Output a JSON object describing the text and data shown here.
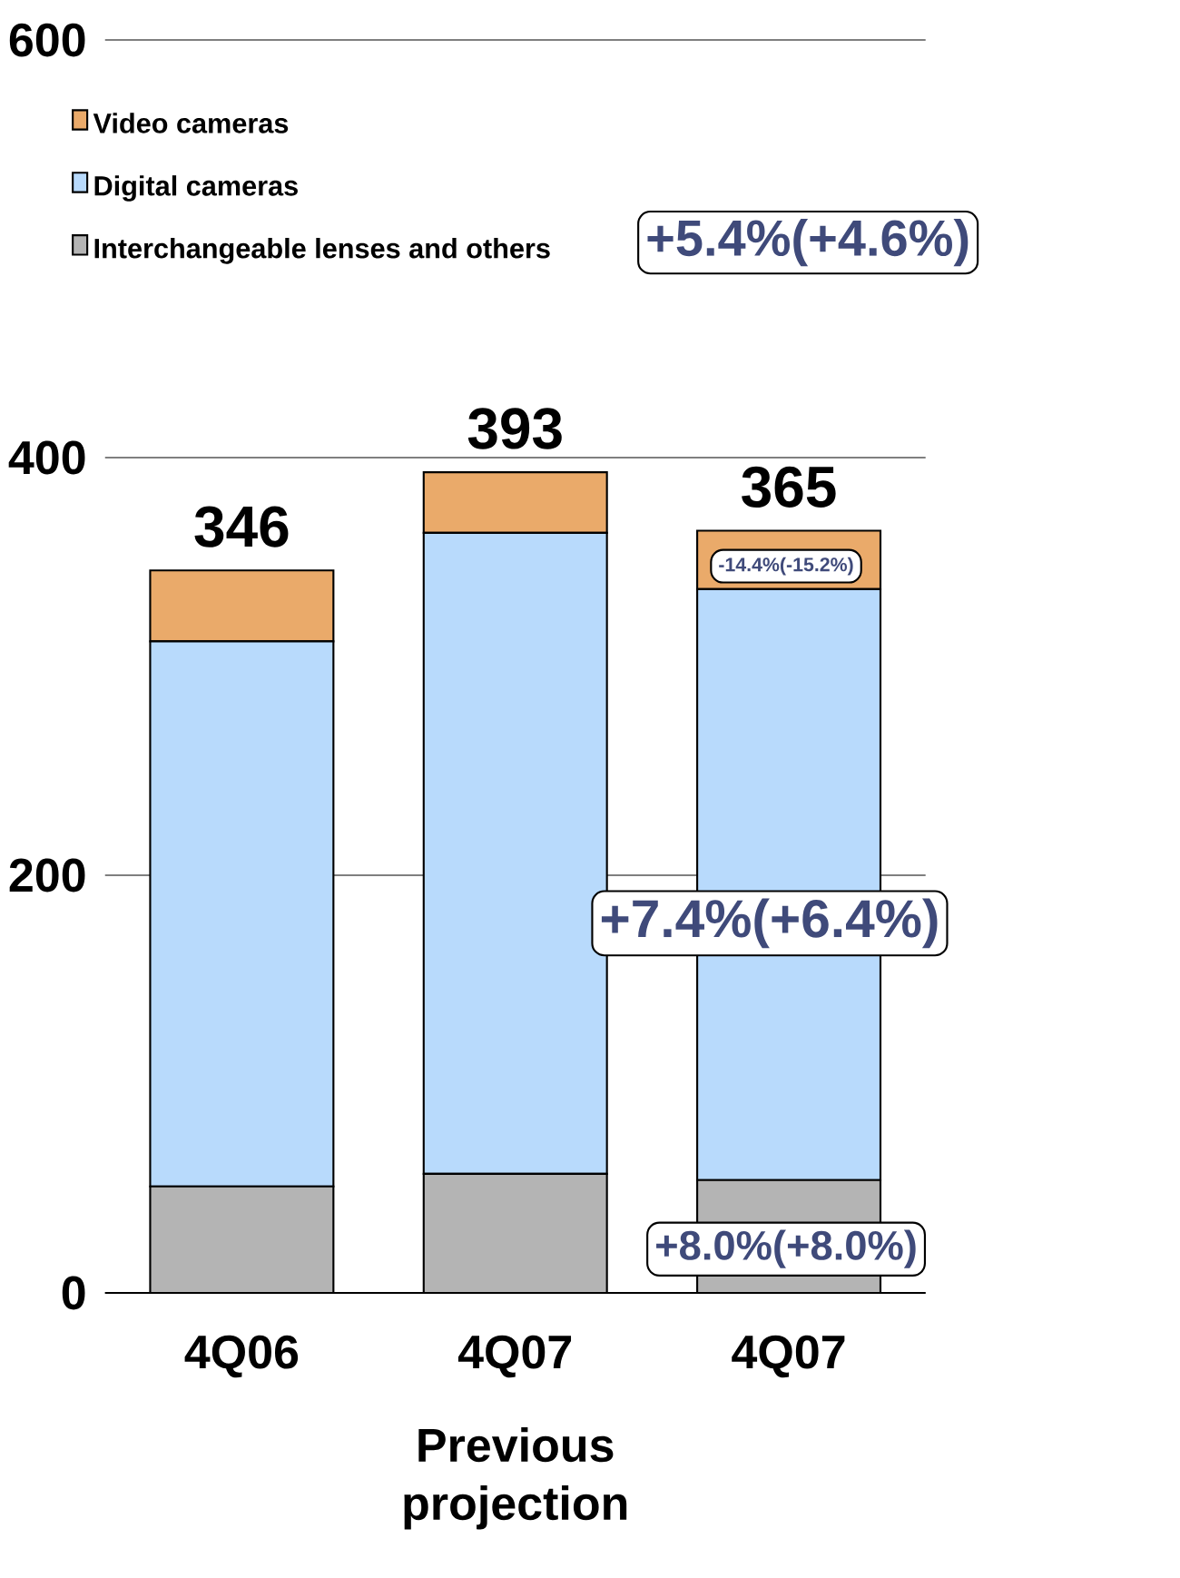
{
  "chart_data": {
    "type": "bar",
    "stacked": true,
    "categories": [
      "4Q06",
      "4Q07",
      "4Q07"
    ],
    "series": [
      {
        "name": "Interchangeable lenses and others",
        "color": "#b4b4b4",
        "values": [
          51,
          57,
          54
        ]
      },
      {
        "name": "Digital cameras",
        "color": "#b8dafc",
        "values": [
          261,
          307,
          283
        ]
      },
      {
        "name": "Video cameras",
        "color": "#eaaa6a",
        "values": [
          34,
          29,
          28
        ]
      }
    ],
    "totals": [
      "346",
      "393",
      "365"
    ],
    "ylim": [
      0,
      600
    ],
    "yticks": [
      0,
      200,
      400,
      600
    ],
    "grid": "y",
    "legend": "top left",
    "annotations": [
      "+5.4%(+4.6%)",
      "-14.4%(-15.2%)",
      "+7.4%(+6.4%)",
      "+8.0%(+8.0%)",
      "Previous projection"
    ]
  }
}
